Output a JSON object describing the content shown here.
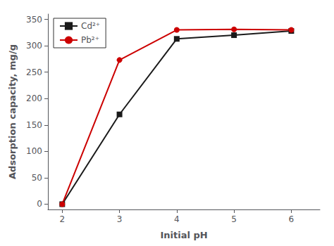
{
  "chart_data": {
    "type": "line",
    "xlabel": "Initial pH",
    "ylabel": "Adsorption capacity, mg/g",
    "series": [
      {
        "name": "Cd²⁺",
        "color": "#1a1a1a",
        "marker": "square",
        "x": [
          2,
          3,
          4,
          5,
          6
        ],
        "values": [
          0,
          170,
          313,
          320,
          328
        ]
      },
      {
        "name": "Pb²⁺",
        "color": "#cc0000",
        "marker": "circle",
        "x": [
          2,
          3,
          4,
          5,
          6
        ],
        "values": [
          0,
          273,
          330,
          331,
          330
        ]
      }
    ],
    "xlim": [
      1.75,
      6.5
    ],
    "ylim": [
      -10,
      360
    ],
    "xticks": [
      2,
      3,
      4,
      5,
      6
    ],
    "yticks": [
      0,
      50,
      100,
      150,
      200,
      250,
      300,
      350
    ],
    "grid": false,
    "legend": "upper left"
  }
}
